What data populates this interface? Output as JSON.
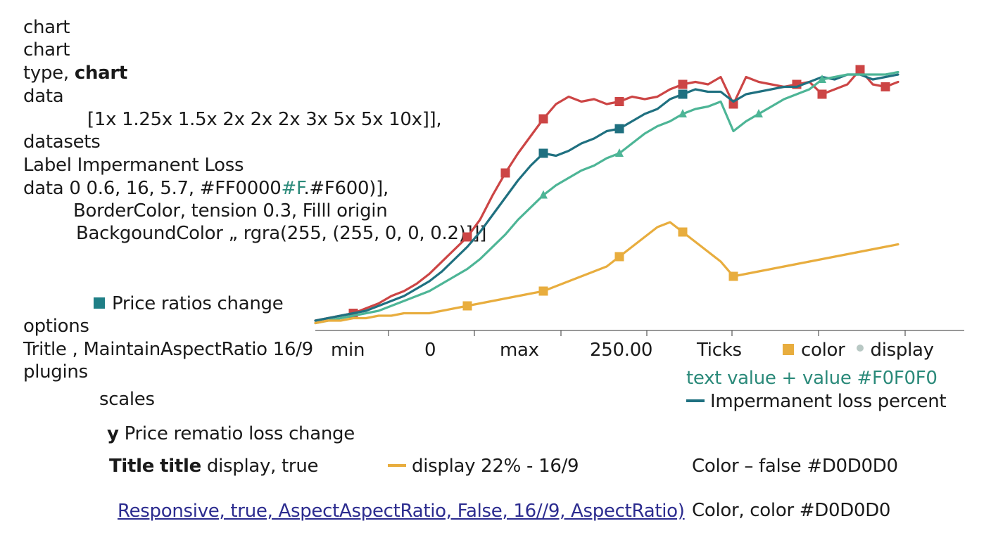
{
  "code_text": {
    "line1": "chart",
    "line2": "chart",
    "line3_a": "type,",
    "line3_b": "chart",
    "line4": "data",
    "line5": "[1x  1.25x  1.5x  2x  2x  2x  3x  5x  5x  10x]],",
    "line6": "datasets",
    "line7": "Label Impermanent Loss",
    "line8_a": "data  0 0.6, 16, 5.7, #FF0000",
    "line8_b": "#F",
    "line8_c": ".#F600)],",
    "line9": "BorderColor,  tension  0.3, Filll   origin",
    "line10": "BackgoundColor „ rgra(255, (255, 0, 0, 0.2)]]]"
  },
  "legend": {
    "price_ratios": "Price ratios change",
    "color": "color",
    "display": "display",
    "text_value": "text value + value #F0F0F0",
    "impermanent": "Impermanent loss percent",
    "display_percent": "display  22% - 16/9"
  },
  "options_text": {
    "options": "options",
    "title_line": "Tritle , MaintainAspectRatio  16/9",
    "plugins": "plugins",
    "scales": "scales",
    "y_a": "y",
    "y_b": "Price rematio loss change",
    "title_a": "Title",
    "title_b": "title",
    "title_c": "display, true",
    "responsive": "Responsive, true, AspectAspectRatio, False,  16//9, AspectRatio)",
    "color_false": "Color – false #D0D0D0",
    "color_color": "Color, color #D0D0D0"
  },
  "colors": {
    "red": "#cc4545",
    "blue": "#1f7080",
    "green": "#4db596",
    "orange": "#e8ad3e",
    "axis": "#333333",
    "square": "#1f7f86"
  },
  "chart_data": {
    "type": "line",
    "x_tick_labels": [
      "min",
      "0",
      "max",
      "250.00",
      "Ticks"
    ],
    "series": [
      {
        "color_key": "red",
        "points": [
          [
            0,
            4
          ],
          [
            5,
            5
          ],
          [
            10,
            6
          ],
          [
            15,
            7
          ],
          [
            20,
            9
          ],
          [
            25,
            11
          ],
          [
            30,
            14
          ],
          [
            35,
            16
          ],
          [
            40,
            19
          ],
          [
            45,
            23
          ],
          [
            50,
            28
          ],
          [
            55,
            33
          ],
          [
            60,
            38
          ],
          [
            65,
            45
          ],
          [
            70,
            55
          ],
          [
            75,
            64
          ],
          [
            80,
            72
          ],
          [
            85,
            79
          ],
          [
            90,
            86
          ],
          [
            95,
            92
          ],
          [
            100,
            95
          ],
          [
            105,
            93
          ],
          [
            110,
            94
          ],
          [
            115,
            92
          ],
          [
            120,
            93
          ],
          [
            125,
            95
          ],
          [
            130,
            94
          ],
          [
            135,
            95
          ],
          [
            140,
            98
          ],
          [
            145,
            100
          ],
          [
            150,
            101
          ],
          [
            155,
            100
          ],
          [
            160,
            103
          ],
          [
            165,
            92
          ],
          [
            170,
            103
          ],
          [
            175,
            101
          ],
          [
            180,
            100
          ],
          [
            185,
            99
          ],
          [
            190,
            100
          ],
          [
            195,
            101
          ],
          [
            200,
            96
          ],
          [
            205,
            98
          ],
          [
            210,
            100
          ],
          [
            215,
            106
          ],
          [
            220,
            100
          ],
          [
            225,
            99
          ],
          [
            230,
            101
          ]
        ],
        "markers": [
          [
            15,
            7
          ],
          [
            60,
            38
          ],
          [
            75,
            64
          ],
          [
            90,
            86
          ],
          [
            120,
            93
          ],
          [
            145,
            100
          ],
          [
            165,
            92
          ],
          [
            190,
            100
          ],
          [
            200,
            96
          ],
          [
            215,
            106
          ],
          [
            225,
            99
          ]
        ],
        "marker_shape": "square"
      },
      {
        "color_key": "blue",
        "points": [
          [
            0,
            4
          ],
          [
            5,
            5
          ],
          [
            10,
            6
          ],
          [
            15,
            7
          ],
          [
            20,
            8
          ],
          [
            25,
            10
          ],
          [
            30,
            12
          ],
          [
            35,
            14
          ],
          [
            40,
            17
          ],
          [
            45,
            20
          ],
          [
            50,
            24
          ],
          [
            55,
            29
          ],
          [
            60,
            34
          ],
          [
            65,
            40
          ],
          [
            70,
            47
          ],
          [
            75,
            54
          ],
          [
            80,
            61
          ],
          [
            85,
            67
          ],
          [
            90,
            72
          ],
          [
            95,
            71
          ],
          [
            100,
            73
          ],
          [
            105,
            76
          ],
          [
            110,
            78
          ],
          [
            115,
            81
          ],
          [
            120,
            82
          ],
          [
            125,
            85
          ],
          [
            130,
            88
          ],
          [
            135,
            90
          ],
          [
            140,
            94
          ],
          [
            145,
            96
          ],
          [
            150,
            98
          ],
          [
            155,
            97
          ],
          [
            160,
            97
          ],
          [
            165,
            93
          ],
          [
            170,
            96
          ],
          [
            175,
            97
          ],
          [
            180,
            98
          ],
          [
            185,
            99
          ],
          [
            190,
            99
          ],
          [
            195,
            101
          ],
          [
            200,
            103
          ],
          [
            205,
            102
          ],
          [
            210,
            104
          ],
          [
            215,
            104
          ],
          [
            220,
            102
          ],
          [
            225,
            103
          ],
          [
            230,
            104
          ]
        ],
        "markers": [
          [
            90,
            72
          ],
          [
            120,
            82
          ],
          [
            145,
            96
          ]
        ],
        "marker_shape": "square"
      },
      {
        "color_key": "green",
        "points": [
          [
            0,
            3
          ],
          [
            5,
            4
          ],
          [
            10,
            5
          ],
          [
            15,
            6
          ],
          [
            20,
            7
          ],
          [
            25,
            8
          ],
          [
            30,
            10
          ],
          [
            35,
            12
          ],
          [
            40,
            14
          ],
          [
            45,
            16
          ],
          [
            50,
            19
          ],
          [
            55,
            22
          ],
          [
            60,
            25
          ],
          [
            65,
            29
          ],
          [
            70,
            34
          ],
          [
            75,
            39
          ],
          [
            80,
            45
          ],
          [
            85,
            50
          ],
          [
            90,
            55
          ],
          [
            95,
            59
          ],
          [
            100,
            62
          ],
          [
            105,
            65
          ],
          [
            110,
            67
          ],
          [
            115,
            70
          ],
          [
            120,
            72
          ],
          [
            125,
            76
          ],
          [
            130,
            80
          ],
          [
            135,
            83
          ],
          [
            140,
            85
          ],
          [
            145,
            88
          ],
          [
            150,
            90
          ],
          [
            155,
            91
          ],
          [
            160,
            93
          ],
          [
            165,
            81
          ],
          [
            170,
            85
          ],
          [
            175,
            88
          ],
          [
            180,
            91
          ],
          [
            185,
            94
          ],
          [
            190,
            96
          ],
          [
            195,
            98
          ],
          [
            200,
            102
          ],
          [
            205,
            103
          ],
          [
            210,
            104
          ],
          [
            215,
            104
          ],
          [
            220,
            104
          ],
          [
            225,
            104
          ],
          [
            230,
            105
          ]
        ],
        "markers": [
          [
            90,
            55
          ],
          [
            120,
            72
          ],
          [
            145,
            88
          ],
          [
            175,
            88
          ],
          [
            200,
            102
          ]
        ],
        "marker_shape": "triangle"
      },
      {
        "color_key": "orange",
        "points": [
          [
            0,
            3
          ],
          [
            5,
            4
          ],
          [
            10,
            4
          ],
          [
            15,
            5
          ],
          [
            20,
            5
          ],
          [
            25,
            6
          ],
          [
            30,
            6
          ],
          [
            35,
            7
          ],
          [
            40,
            7
          ],
          [
            45,
            7
          ],
          [
            50,
            8
          ],
          [
            55,
            9
          ],
          [
            60,
            10
          ],
          [
            65,
            11
          ],
          [
            70,
            12
          ],
          [
            75,
            13
          ],
          [
            80,
            14
          ],
          [
            85,
            15
          ],
          [
            90,
            16
          ],
          [
            95,
            18
          ],
          [
            100,
            20
          ],
          [
            105,
            22
          ],
          [
            110,
            24
          ],
          [
            115,
            26
          ],
          [
            120,
            30
          ],
          [
            125,
            34
          ],
          [
            130,
            38
          ],
          [
            135,
            42
          ],
          [
            140,
            44
          ],
          [
            145,
            40
          ],
          [
            150,
            36
          ],
          [
            155,
            32
          ],
          [
            160,
            28
          ],
          [
            165,
            22
          ],
          [
            170,
            23
          ],
          [
            175,
            24
          ],
          [
            180,
            25
          ],
          [
            185,
            26
          ],
          [
            190,
            27
          ],
          [
            195,
            28
          ],
          [
            200,
            29
          ],
          [
            205,
            30
          ],
          [
            210,
            31
          ],
          [
            215,
            32
          ],
          [
            220,
            33
          ],
          [
            225,
            34
          ],
          [
            230,
            35
          ]
        ],
        "markers": [
          [
            60,
            10
          ],
          [
            90,
            16
          ],
          [
            120,
            30
          ],
          [
            145,
            40
          ],
          [
            165,
            22
          ]
        ],
        "marker_shape": "square"
      }
    ],
    "x_range": [
      0,
      230
    ],
    "y_range": [
      0,
      110
    ]
  }
}
